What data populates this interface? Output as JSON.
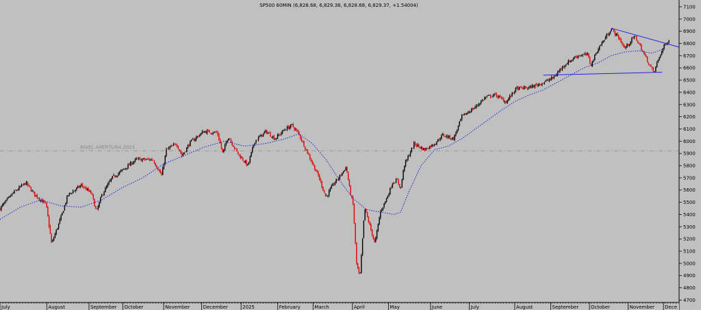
{
  "chart_data": {
    "type": "candlestick",
    "title": "SP500 60MIN (6,828.68, 6,829.38, 6,828.68, 6,829.37, +1.54004)",
    "ylim": [
      4680,
      7150
    ],
    "y_ticks": [
      4700,
      4800,
      4900,
      5000,
      5100,
      5200,
      5300,
      5400,
      5500,
      5600,
      5700,
      5800,
      5900,
      6000,
      6100,
      6200,
      6300,
      6400,
      6500,
      6600,
      6700,
      6800,
      6900,
      7000,
      7100
    ],
    "x_labels": [
      {
        "label": "July",
        "t": 0.0
      },
      {
        "label": "August",
        "t": 0.069
      },
      {
        "label": "September",
        "t": 0.131
      },
      {
        "label": "October",
        "t": 0.181
      },
      {
        "label": "November",
        "t": 0.241
      },
      {
        "label": "December",
        "t": 0.297
      },
      {
        "label": "2025",
        "t": 0.355
      },
      {
        "label": "February",
        "t": 0.409
      },
      {
        "label": "March",
        "t": 0.461
      },
      {
        "label": "April",
        "t": 0.519
      },
      {
        "label": "May",
        "t": 0.572
      },
      {
        "label": "June",
        "t": 0.634
      },
      {
        "label": "July",
        "t": 0.691
      },
      {
        "label": "August",
        "t": 0.758
      },
      {
        "label": "September",
        "t": 0.811
      },
      {
        "label": "October",
        "t": 0.868
      },
      {
        "label": "November",
        "t": 0.925
      },
      {
        "label": "Dece",
        "t": 0.977
      }
    ],
    "price_path": [
      [
        0.0,
        5450
      ],
      [
        0.02,
        5580
      ],
      [
        0.038,
        5660
      ],
      [
        0.05,
        5570
      ],
      [
        0.068,
        5480
      ],
      [
        0.076,
        5160
      ],
      [
        0.09,
        5380
      ],
      [
        0.1,
        5560
      ],
      [
        0.12,
        5640
      ],
      [
        0.135,
        5570
      ],
      [
        0.142,
        5420
      ],
      [
        0.15,
        5560
      ],
      [
        0.165,
        5700
      ],
      [
        0.18,
        5760
      ],
      [
        0.2,
        5850
      ],
      [
        0.225,
        5850
      ],
      [
        0.238,
        5720
      ],
      [
        0.245,
        5930
      ],
      [
        0.26,
        5980
      ],
      [
        0.268,
        5880
      ],
      [
        0.28,
        5990
      ],
      [
        0.3,
        6080
      ],
      [
        0.32,
        6070
      ],
      [
        0.328,
        5900
      ],
      [
        0.336,
        6040
      ],
      [
        0.35,
        5900
      ],
      [
        0.365,
        5800
      ],
      [
        0.375,
        6000
      ],
      [
        0.392,
        6080
      ],
      [
        0.405,
        6020
      ],
      [
        0.42,
        6100
      ],
      [
        0.43,
        6130
      ],
      [
        0.44,
        6060
      ],
      [
        0.455,
        5880
      ],
      [
        0.47,
        5700
      ],
      [
        0.48,
        5540
      ],
      [
        0.49,
        5640
      ],
      [
        0.5,
        5710
      ],
      [
        0.51,
        5790
      ],
      [
        0.515,
        5600
      ],
      [
        0.52,
        5480
      ],
      [
        0.525,
        5000
      ],
      [
        0.53,
        4880
      ],
      [
        0.537,
        5450
      ],
      [
        0.545,
        5300
      ],
      [
        0.552,
        5160
      ],
      [
        0.56,
        5420
      ],
      [
        0.57,
        5540
      ],
      [
        0.578,
        5660
      ],
      [
        0.585,
        5680
      ],
      [
        0.59,
        5610
      ],
      [
        0.595,
        5800
      ],
      [
        0.61,
        5980
      ],
      [
        0.625,
        5930
      ],
      [
        0.64,
        5980
      ],
      [
        0.652,
        6050
      ],
      [
        0.668,
        6020
      ],
      [
        0.68,
        6200
      ],
      [
        0.7,
        6280
      ],
      [
        0.715,
        6360
      ],
      [
        0.73,
        6380
      ],
      [
        0.745,
        6320
      ],
      [
        0.76,
        6430
      ],
      [
        0.78,
        6440
      ],
      [
        0.8,
        6480
      ],
      [
        0.815,
        6520
      ],
      [
        0.83,
        6620
      ],
      [
        0.85,
        6700
      ],
      [
        0.865,
        6710
      ],
      [
        0.87,
        6620
      ],
      [
        0.88,
        6750
      ],
      [
        0.893,
        6860
      ],
      [
        0.9,
        6920
      ],
      [
        0.912,
        6840
      ],
      [
        0.92,
        6760
      ],
      [
        0.935,
        6860
      ],
      [
        0.945,
        6750
      ],
      [
        0.955,
        6640
      ],
      [
        0.963,
        6560
      ],
      [
        0.97,
        6680
      ],
      [
        0.978,
        6780
      ],
      [
        0.985,
        6830
      ]
    ],
    "moving_average": [
      [
        0.0,
        5360
      ],
      [
        0.03,
        5460
      ],
      [
        0.06,
        5520
      ],
      [
        0.09,
        5470
      ],
      [
        0.12,
        5460
      ],
      [
        0.15,
        5520
      ],
      [
        0.18,
        5620
      ],
      [
        0.21,
        5700
      ],
      [
        0.24,
        5810
      ],
      [
        0.27,
        5880
      ],
      [
        0.3,
        5950
      ],
      [
        0.33,
        6000
      ],
      [
        0.36,
        5960
      ],
      [
        0.39,
        5980
      ],
      [
        0.42,
        6020
      ],
      [
        0.44,
        6060
      ],
      [
        0.46,
        5980
      ],
      [
        0.48,
        5850
      ],
      [
        0.5,
        5680
      ],
      [
        0.52,
        5530
      ],
      [
        0.54,
        5440
      ],
      [
        0.56,
        5420
      ],
      [
        0.58,
        5400
      ],
      [
        0.59,
        5420
      ],
      [
        0.6,
        5560
      ],
      [
        0.62,
        5800
      ],
      [
        0.64,
        5930
      ],
      [
        0.66,
        5960
      ],
      [
        0.68,
        6020
      ],
      [
        0.7,
        6100
      ],
      [
        0.72,
        6180
      ],
      [
        0.74,
        6260
      ],
      [
        0.76,
        6330
      ],
      [
        0.78,
        6380
      ],
      [
        0.8,
        6420
      ],
      [
        0.82,
        6480
      ],
      [
        0.84,
        6540
      ],
      [
        0.86,
        6600
      ],
      [
        0.88,
        6640
      ],
      [
        0.9,
        6700
      ],
      [
        0.92,
        6730
      ],
      [
        0.94,
        6740
      ],
      [
        0.96,
        6720
      ],
      [
        0.98,
        6760
      ]
    ],
    "lines": [
      {
        "name": "resistance-trendline",
        "color": "#2222ee",
        "from": [
          0.9,
          6925
        ],
        "to": [
          1.0,
          6770
        ]
      },
      {
        "name": "support-line",
        "color": "#2222ee",
        "from": [
          0.8,
          6540
        ],
        "to": [
          0.975,
          6565
        ]
      }
    ],
    "reference_level": {
      "label": "NIVEL APERTURA 2025",
      "value": 5920
    },
    "colors": {
      "background": "#c0c0c0",
      "candle_up": "#000000",
      "candle_down": "#e00000",
      "moving_average": "#1a1ad6",
      "reference": "#8a8a8a",
      "trendlines": "#2222ee"
    },
    "grid": false,
    "legend": "none"
  }
}
